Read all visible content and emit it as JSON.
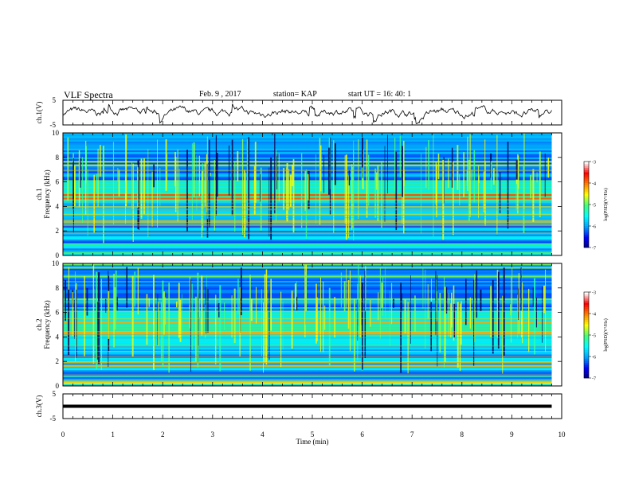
{
  "header": {
    "title": "VLF Spectra",
    "date": "Feb. 9 , 2017",
    "station": "station= KAP",
    "start": "start UT = 16: 40: 1"
  },
  "chart_data": [
    {
      "type": "line",
      "panel": "ch1-waveform",
      "ylabel": "ch.1(V)",
      "ylim": [
        -5,
        5
      ],
      "yticks": [
        "5",
        "-5"
      ],
      "xlim": [
        0,
        10
      ],
      "description_values": "noisy voltage trace fluctuating roughly between -2 and 2 V across 0-9.8 min"
    },
    {
      "type": "heatmap",
      "panel": "ch1-spectrogram",
      "ylabel": "ch.1 Frequency (kHz)",
      "ylim": [
        0,
        10
      ],
      "yticks": [
        "0",
        "2",
        "4",
        "6",
        "8",
        "10"
      ],
      "xlim": [
        0,
        10
      ],
      "data_end_min": 9.8,
      "colorbar": {
        "label": "log(PSD)(V²/Hz)",
        "ticks": [
          "-3",
          "-4",
          "-5",
          "-6",
          "-7"
        ],
        "range": [
          -7,
          -3
        ]
      }
    },
    {
      "type": "heatmap",
      "panel": "ch2-spectrogram",
      "ylabel": "ch.2 Frequency (kHz)",
      "ylim": [
        0,
        10
      ],
      "yticks": [
        "0",
        "2",
        "4",
        "6",
        "8",
        "10"
      ],
      "xlim": [
        0,
        10
      ],
      "data_end_min": 9.8,
      "colorbar": {
        "label": "log(PSD)(V²/Hz)",
        "ticks": [
          "-3",
          "-4",
          "-5",
          "-6",
          "-7"
        ],
        "range": [
          -7,
          -3
        ]
      }
    },
    {
      "type": "line",
      "panel": "ch3-waveform",
      "ylabel": "ch.3(V)",
      "ylim": [
        -5,
        5
      ],
      "yticks": [
        "5",
        "-5"
      ],
      "xlim": [
        0,
        10
      ],
      "constant_value": 0,
      "data_end_min": 9.8
    }
  ],
  "xaxis": {
    "label": "Time (min)",
    "ticks": [
      "0",
      "1",
      "2",
      "3",
      "4",
      "5",
      "6",
      "7",
      "8",
      "9",
      "10"
    ]
  },
  "colors": {
    "waveform": "#000000",
    "colormap": [
      "#00007a",
      "#0000ff",
      "#00a0ff",
      "#00ffff",
      "#40ff80",
      "#ffff00",
      "#ff8000",
      "#ff0000",
      "#ffffff"
    ]
  }
}
